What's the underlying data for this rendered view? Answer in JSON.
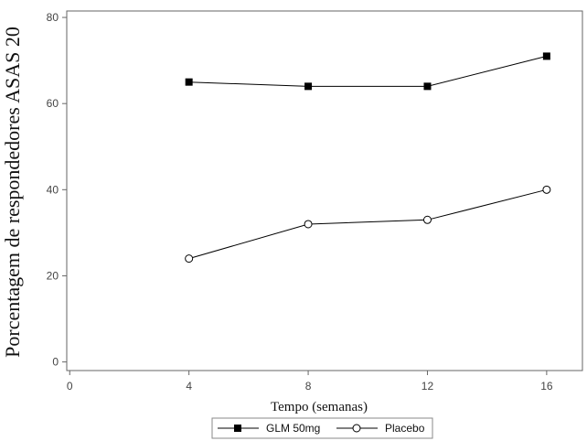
{
  "chart_data": {
    "type": "line",
    "title": "",
    "xlabel": "Tempo (semanas)",
    "ylabel": "Porcentagem de respondedores ASAS 20",
    "xlim": [
      -0.1,
      17.2
    ],
    "ylim": [
      -2,
      81.5
    ],
    "xticks": [
      0,
      4,
      8,
      12,
      16
    ],
    "yticks": [
      0,
      20,
      40,
      60,
      80
    ],
    "grid": false,
    "legend_position": "bottom",
    "axis_color": "#666666",
    "series": [
      {
        "name": "GLM 50mg",
        "marker": "square-filled",
        "color": "#000000",
        "x": [
          4,
          8,
          12,
          16
        ],
        "y": [
          65,
          64,
          64,
          71
        ]
      },
      {
        "name": "Placebo",
        "marker": "circle-open",
        "color": "#000000",
        "x": [
          4,
          8,
          12,
          16
        ],
        "y": [
          24,
          32,
          33,
          40
        ]
      }
    ]
  }
}
